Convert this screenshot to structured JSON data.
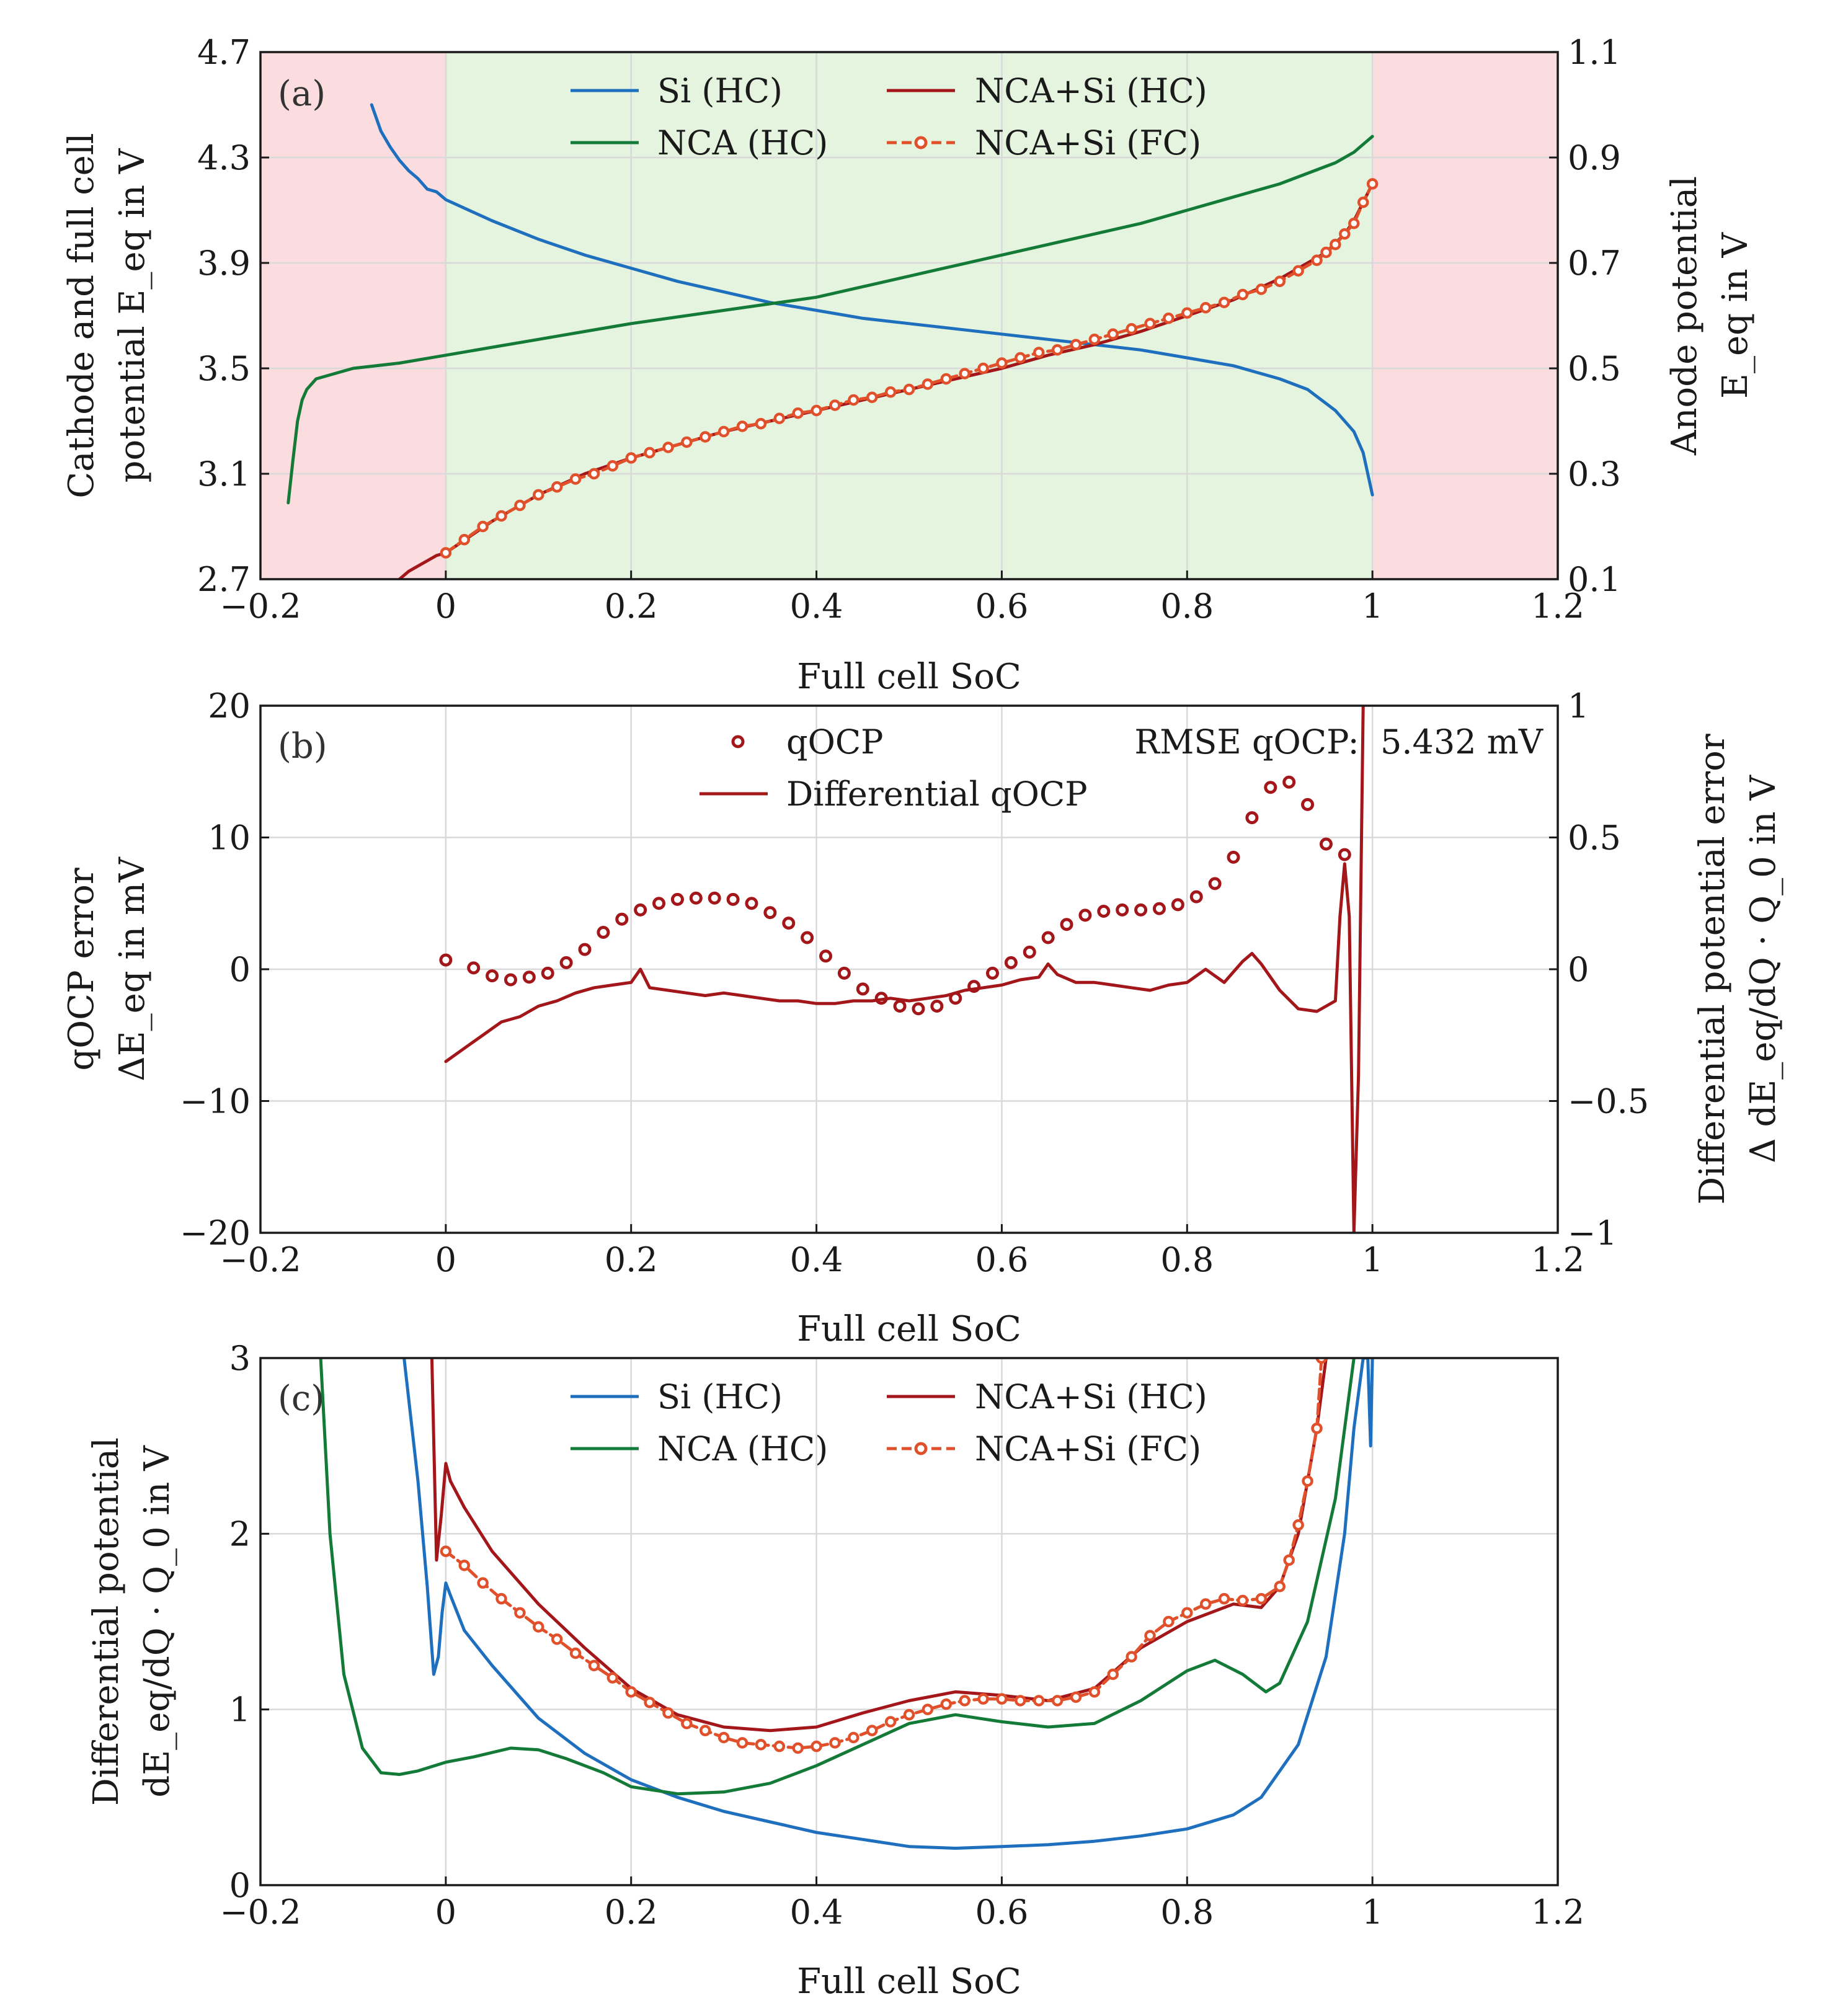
{
  "colors": {
    "si": "#1f6fbf",
    "nca": "#137a37",
    "full_hc": "#a3161a",
    "full_fc": "#e0502b",
    "region_red": "#fbdde0",
    "region_green": "#e4f4de"
  },
  "chart_data": [
    {
      "id": "a",
      "type": "line",
      "panel_label": "(a)",
      "xlabel": "Full cell SoC",
      "ylabel": [
        "Cathode and full cell",
        "potential E_eq in V"
      ],
      "ylabel_right": [
        "Anode potential",
        "E_eq in V"
      ],
      "xlim": [
        -0.2,
        1.2
      ],
      "ylim": [
        2.7,
        4.7
      ],
      "ylim_right": [
        0.1,
        1.1
      ],
      "xticks": [
        "−0.2",
        "0",
        "0.2",
        "0.4",
        "0.6",
        "0.8",
        "1",
        "1.2"
      ],
      "yticks": [
        "2.7",
        "3.1",
        "3.5",
        "3.9",
        "4.3",
        "4.7"
      ],
      "yticks_right": [
        "0.1",
        "0.3",
        "0.5",
        "0.7",
        "0.9",
        "1.1"
      ],
      "shaded_regions": [
        {
          "x": [
            -0.2,
            0
          ],
          "color": "red"
        },
        {
          "x": [
            0,
            1
          ],
          "color": "green"
        },
        {
          "x": [
            1,
            1.2
          ],
          "color": "red"
        }
      ],
      "legend": [
        "Si (HC)",
        "NCA (HC)",
        "NCA+Si (HC)",
        "NCA+Si (FC)"
      ],
      "series": [
        {
          "name": "Si (HC)",
          "axis": "right",
          "color_key": "si",
          "x": [
            -0.08,
            -0.07,
            -0.06,
            -0.05,
            -0.04,
            -0.03,
            -0.02,
            -0.01,
            0.0,
            0.05,
            0.1,
            0.15,
            0.2,
            0.25,
            0.3,
            0.35,
            0.4,
            0.45,
            0.5,
            0.55,
            0.6,
            0.65,
            0.7,
            0.75,
            0.8,
            0.85,
            0.9,
            0.93,
            0.96,
            0.98,
            0.99,
            1.0
          ],
          "y": [
            1.0,
            0.95,
            0.92,
            0.895,
            0.875,
            0.86,
            0.84,
            0.835,
            0.82,
            0.78,
            0.745,
            0.715,
            0.69,
            0.665,
            0.645,
            0.625,
            0.61,
            0.595,
            0.585,
            0.575,
            0.565,
            0.555,
            0.545,
            0.535,
            0.52,
            0.505,
            0.48,
            0.46,
            0.42,
            0.38,
            0.34,
            0.26
          ]
        },
        {
          "name": "NCA (HC)",
          "axis": "left",
          "color_key": "nca",
          "x": [
            -0.17,
            -0.165,
            -0.16,
            -0.155,
            -0.15,
            -0.14,
            -0.12,
            -0.1,
            -0.05,
            0.0,
            0.05,
            0.1,
            0.15,
            0.2,
            0.25,
            0.3,
            0.35,
            0.4,
            0.45,
            0.5,
            0.55,
            0.6,
            0.65,
            0.7,
            0.75,
            0.8,
            0.85,
            0.9,
            0.93,
            0.96,
            0.98,
            1.0
          ],
          "y": [
            2.99,
            3.15,
            3.3,
            3.38,
            3.42,
            3.46,
            3.48,
            3.5,
            3.52,
            3.55,
            3.58,
            3.61,
            3.64,
            3.67,
            3.695,
            3.72,
            3.745,
            3.77,
            3.81,
            3.85,
            3.89,
            3.93,
            3.97,
            4.01,
            4.05,
            4.1,
            4.15,
            4.2,
            4.24,
            4.28,
            4.32,
            4.38
          ]
        },
        {
          "name": "NCA+Si (HC)",
          "axis": "left",
          "color_key": "full_hc",
          "x": [
            -0.05,
            -0.04,
            -0.03,
            -0.02,
            -0.01,
            0.0,
            0.05,
            0.1,
            0.15,
            0.2,
            0.25,
            0.3,
            0.35,
            0.4,
            0.45,
            0.5,
            0.55,
            0.6,
            0.65,
            0.7,
            0.75,
            0.8,
            0.85,
            0.9,
            0.95,
            0.97,
            0.98,
            0.99,
            1.0
          ],
          "y": [
            2.7,
            2.73,
            2.75,
            2.77,
            2.79,
            2.8,
            2.92,
            3.02,
            3.1,
            3.16,
            3.21,
            3.26,
            3.3,
            3.34,
            3.38,
            3.42,
            3.46,
            3.5,
            3.55,
            3.59,
            3.64,
            3.7,
            3.76,
            3.84,
            3.94,
            4.01,
            4.06,
            4.13,
            4.2
          ]
        },
        {
          "name": "NCA+Si (FC)",
          "axis": "left",
          "color_key": "full_fc",
          "markers": true,
          "x": [
            0.0,
            0.02,
            0.04,
            0.06,
            0.08,
            0.1,
            0.12,
            0.14,
            0.16,
            0.18,
            0.2,
            0.22,
            0.24,
            0.26,
            0.28,
            0.3,
            0.32,
            0.34,
            0.36,
            0.38,
            0.4,
            0.42,
            0.44,
            0.46,
            0.48,
            0.5,
            0.52,
            0.54,
            0.56,
            0.58,
            0.6,
            0.62,
            0.64,
            0.66,
            0.68,
            0.7,
            0.72,
            0.74,
            0.76,
            0.78,
            0.8,
            0.82,
            0.84,
            0.86,
            0.88,
            0.9,
            0.92,
            0.94,
            0.95,
            0.96,
            0.97,
            0.98,
            0.99,
            1.0
          ],
          "y": [
            2.8,
            2.85,
            2.9,
            2.94,
            2.98,
            3.02,
            3.05,
            3.08,
            3.1,
            3.13,
            3.16,
            3.18,
            3.2,
            3.22,
            3.24,
            3.26,
            3.28,
            3.29,
            3.31,
            3.33,
            3.34,
            3.36,
            3.38,
            3.39,
            3.41,
            3.42,
            3.44,
            3.46,
            3.48,
            3.5,
            3.52,
            3.54,
            3.56,
            3.57,
            3.59,
            3.61,
            3.63,
            3.65,
            3.67,
            3.69,
            3.71,
            3.73,
            3.75,
            3.78,
            3.8,
            3.83,
            3.87,
            3.91,
            3.94,
            3.97,
            4.01,
            4.05,
            4.13,
            4.2
          ]
        }
      ]
    },
    {
      "id": "b",
      "type": "line",
      "panel_label": "(b)",
      "xlabel": "Full cell SoC",
      "ylabel": [
        "qOCP error",
        "ΔE_eq in mV"
      ],
      "ylabel_right": [
        "Differential potential error",
        "Δ dE_eq/dQ · Q_0 in V"
      ],
      "xlim": [
        -0.2,
        1.2
      ],
      "ylim": [
        -20,
        20
      ],
      "ylim_right": [
        -1,
        1
      ],
      "xticks": [
        "−0.2",
        "0",
        "0.2",
        "0.4",
        "0.6",
        "0.8",
        "1",
        "1.2"
      ],
      "yticks": [
        "−20",
        "−10",
        "0",
        "10",
        "20"
      ],
      "yticks_right": [
        "−1",
        "−0.5",
        "0",
        "0.5",
        "1"
      ],
      "annotation": "RMSE qOCP:  5.432 mV",
      "legend": [
        "qOCP",
        "Differential qOCP"
      ],
      "series": [
        {
          "name": "qOCP",
          "axis": "left",
          "color_key": "full_hc",
          "style": "markers",
          "x": [
            0.0,
            0.03,
            0.05,
            0.07,
            0.09,
            0.11,
            0.13,
            0.15,
            0.17,
            0.19,
            0.21,
            0.23,
            0.25,
            0.27,
            0.29,
            0.31,
            0.33,
            0.35,
            0.37,
            0.39,
            0.41,
            0.43,
            0.45,
            0.47,
            0.49,
            0.51,
            0.53,
            0.55,
            0.57,
            0.59,
            0.61,
            0.63,
            0.65,
            0.67,
            0.69,
            0.71,
            0.73,
            0.75,
            0.77,
            0.79,
            0.81,
            0.83,
            0.85,
            0.87,
            0.89,
            0.91,
            0.93,
            0.95,
            0.97
          ],
          "y": [
            0.7,
            0.1,
            -0.5,
            -0.8,
            -0.6,
            -0.3,
            0.5,
            1.5,
            2.8,
            3.8,
            4.5,
            5.0,
            5.3,
            5.4,
            5.4,
            5.3,
            5.0,
            4.3,
            3.5,
            2.4,
            1.0,
            -0.3,
            -1.5,
            -2.2,
            -2.8,
            -3.0,
            -2.8,
            -2.2,
            -1.3,
            -0.3,
            0.5,
            1.3,
            2.4,
            3.4,
            4.1,
            4.4,
            4.5,
            4.5,
            4.6,
            4.9,
            5.5,
            6.5,
            8.5,
            11.5,
            13.8,
            14.2,
            12.5,
            9.5,
            8.7
          ]
        },
        {
          "name": "Differential qOCP",
          "axis": "right",
          "color_key": "full_hc",
          "style": "line",
          "x": [
            0.0,
            0.02,
            0.04,
            0.06,
            0.08,
            0.1,
            0.12,
            0.14,
            0.16,
            0.18,
            0.2,
            0.21,
            0.22,
            0.24,
            0.26,
            0.28,
            0.3,
            0.32,
            0.34,
            0.36,
            0.38,
            0.4,
            0.42,
            0.44,
            0.46,
            0.48,
            0.5,
            0.52,
            0.54,
            0.56,
            0.58,
            0.6,
            0.62,
            0.64,
            0.65,
            0.66,
            0.68,
            0.7,
            0.72,
            0.74,
            0.76,
            0.78,
            0.8,
            0.82,
            0.84,
            0.86,
            0.87,
            0.88,
            0.9,
            0.92,
            0.94,
            0.96,
            0.965,
            0.97,
            0.975,
            0.98,
            0.985,
            0.99
          ],
          "y": [
            -0.35,
            -0.3,
            -0.25,
            -0.2,
            -0.18,
            -0.14,
            -0.12,
            -0.09,
            -0.07,
            -0.06,
            -0.05,
            0.0,
            -0.07,
            -0.08,
            -0.09,
            -0.1,
            -0.09,
            -0.1,
            -0.11,
            -0.12,
            -0.12,
            -0.13,
            -0.13,
            -0.12,
            -0.12,
            -0.11,
            -0.12,
            -0.11,
            -0.1,
            -0.08,
            -0.07,
            -0.06,
            -0.04,
            -0.03,
            0.02,
            -0.02,
            -0.05,
            -0.05,
            -0.06,
            -0.07,
            -0.08,
            -0.06,
            -0.05,
            0.0,
            -0.05,
            0.03,
            0.06,
            0.02,
            -0.08,
            -0.15,
            -0.16,
            -0.12,
            0.2,
            0.4,
            0.2,
            -1.0,
            -0.4,
            1.0
          ]
        }
      ]
    },
    {
      "id": "c",
      "type": "line",
      "panel_label": "(c)",
      "xlabel": "Full cell SoC",
      "ylabel": [
        "Differential potential",
        "dE_eq/dQ · Q_0 in V"
      ],
      "xlim": [
        -0.2,
        1.2
      ],
      "ylim": [
        0,
        3
      ],
      "xticks": [
        "−0.2",
        "0",
        "0.2",
        "0.4",
        "0.6",
        "0.8",
        "1",
        "1.2"
      ],
      "yticks": [
        "0",
        "1",
        "2",
        "3"
      ],
      "legend": [
        "Si (HC)",
        "NCA (HC)",
        "NCA+Si (HC)",
        "NCA+Si (FC)"
      ],
      "series": [
        {
          "name": "Si (HC)",
          "axis": "left",
          "color_key": "si",
          "x": [
            -0.045,
            -0.03,
            -0.02,
            -0.013,
            -0.008,
            -0.004,
            0.0,
            0.005,
            0.02,
            0.05,
            0.1,
            0.15,
            0.2,
            0.25,
            0.3,
            0.35,
            0.4,
            0.45,
            0.5,
            0.55,
            0.6,
            0.65,
            0.7,
            0.75,
            0.8,
            0.85,
            0.88,
            0.92,
            0.95,
            0.97,
            0.98,
            0.99,
            0.995,
            0.998,
            1.0
          ],
          "y": [
            3.0,
            2.3,
            1.7,
            1.2,
            1.3,
            1.55,
            1.72,
            1.65,
            1.45,
            1.25,
            0.95,
            0.75,
            0.6,
            0.5,
            0.42,
            0.36,
            0.3,
            0.26,
            0.22,
            0.21,
            0.22,
            0.23,
            0.25,
            0.28,
            0.32,
            0.4,
            0.5,
            0.8,
            1.3,
            2.0,
            2.6,
            3.0,
            3.0,
            2.5,
            3.0
          ]
        },
        {
          "name": "NCA (HC)",
          "axis": "left",
          "color_key": "nca",
          "x": [
            -0.135,
            -0.125,
            -0.11,
            -0.09,
            -0.07,
            -0.05,
            -0.03,
            0.0,
            0.03,
            0.07,
            0.1,
            0.13,
            0.17,
            0.2,
            0.25,
            0.3,
            0.35,
            0.4,
            0.45,
            0.5,
            0.55,
            0.6,
            0.65,
            0.7,
            0.75,
            0.8,
            0.83,
            0.86,
            0.885,
            0.9,
            0.93,
            0.96,
            0.98
          ],
          "y": [
            3.0,
            2.0,
            1.2,
            0.78,
            0.64,
            0.63,
            0.65,
            0.7,
            0.73,
            0.78,
            0.77,
            0.72,
            0.64,
            0.56,
            0.52,
            0.53,
            0.58,
            0.68,
            0.8,
            0.92,
            0.97,
            0.93,
            0.9,
            0.92,
            1.05,
            1.22,
            1.28,
            1.2,
            1.1,
            1.15,
            1.5,
            2.2,
            3.0
          ]
        },
        {
          "name": "NCA+Si (HC)",
          "axis": "left",
          "color_key": "full_hc",
          "x": [
            -0.015,
            -0.01,
            -0.005,
            0.0,
            0.005,
            0.02,
            0.05,
            0.1,
            0.15,
            0.2,
            0.25,
            0.3,
            0.35,
            0.4,
            0.45,
            0.5,
            0.55,
            0.6,
            0.65,
            0.7,
            0.75,
            0.8,
            0.85,
            0.88,
            0.9,
            0.92,
            0.94,
            0.95
          ],
          "y": [
            3.0,
            1.85,
            2.1,
            2.4,
            2.3,
            2.15,
            1.9,
            1.6,
            1.35,
            1.12,
            0.97,
            0.9,
            0.88,
            0.9,
            0.98,
            1.05,
            1.1,
            1.08,
            1.05,
            1.12,
            1.35,
            1.5,
            1.6,
            1.58,
            1.7,
            2.0,
            2.6,
            3.0
          ]
        },
        {
          "name": "NCA+Si (FC)",
          "axis": "left",
          "color_key": "full_fc",
          "markers": true,
          "x": [
            0.0,
            0.02,
            0.04,
            0.06,
            0.08,
            0.1,
            0.12,
            0.14,
            0.16,
            0.18,
            0.2,
            0.22,
            0.24,
            0.26,
            0.28,
            0.3,
            0.32,
            0.34,
            0.36,
            0.38,
            0.4,
            0.42,
            0.44,
            0.46,
            0.48,
            0.5,
            0.52,
            0.54,
            0.56,
            0.58,
            0.6,
            0.62,
            0.64,
            0.66,
            0.68,
            0.7,
            0.72,
            0.74,
            0.76,
            0.78,
            0.8,
            0.82,
            0.84,
            0.86,
            0.88,
            0.9,
            0.91,
            0.92,
            0.93,
            0.94,
            0.945
          ],
          "y": [
            1.9,
            1.82,
            1.72,
            1.63,
            1.55,
            1.47,
            1.4,
            1.32,
            1.25,
            1.18,
            1.1,
            1.04,
            0.98,
            0.92,
            0.88,
            0.84,
            0.81,
            0.8,
            0.79,
            0.78,
            0.79,
            0.81,
            0.84,
            0.88,
            0.93,
            0.97,
            1.0,
            1.03,
            1.05,
            1.06,
            1.06,
            1.05,
            1.05,
            1.05,
            1.07,
            1.1,
            1.2,
            1.3,
            1.42,
            1.5,
            1.55,
            1.6,
            1.63,
            1.62,
            1.63,
            1.7,
            1.85,
            2.05,
            2.3,
            2.6,
            3.0
          ]
        }
      ]
    }
  ]
}
